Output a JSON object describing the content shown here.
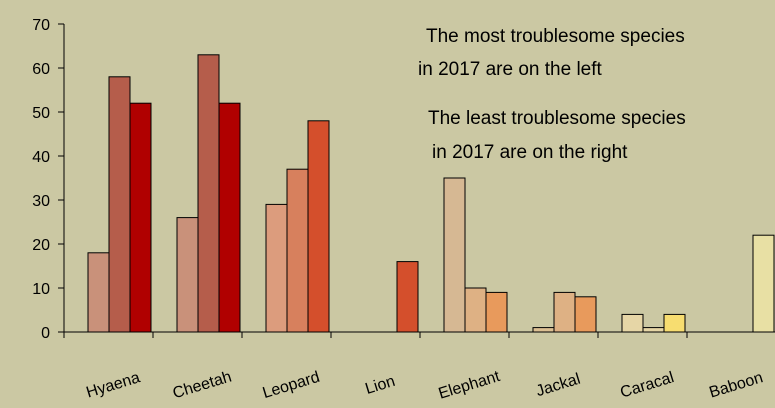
{
  "chart_data": {
    "type": "bar",
    "title": "",
    "xlabel": "",
    "ylabel": "",
    "ylim": [
      0,
      70
    ],
    "yticks": [
      0,
      10,
      20,
      30,
      40,
      50,
      60,
      70
    ],
    "grid": false,
    "legend": "none",
    "background": "#cbc8a3",
    "annotations": [
      {
        "lines": [
          "The most troublesome species",
          "in 2017 are on the left"
        ]
      },
      {
        "lines": [
          "The least troublesome species",
          "in 2017 are on the right"
        ]
      }
    ],
    "groups": [
      {
        "category": "Hyaena",
        "bars": [
          {
            "value": 18,
            "color": "#c9917a"
          },
          {
            "value": 58,
            "color": "#b55d4b"
          },
          {
            "value": 52,
            "color": "#b00000"
          }
        ]
      },
      {
        "category": "Cheetah",
        "bars": [
          {
            "value": 26,
            "color": "#c9917a"
          },
          {
            "value": 63,
            "color": "#b55d4b"
          },
          {
            "value": 52,
            "color": "#b00000"
          }
        ]
      },
      {
        "category": "Leopard",
        "bars": [
          {
            "value": 29,
            "color": "#dc9c7d"
          },
          {
            "value": 37,
            "color": "#d7805d"
          },
          {
            "value": 48,
            "color": "#d44f2c"
          }
        ]
      },
      {
        "category": "Lion",
        "bars": [
          {
            "value": 0,
            "color": "#e8a57a"
          },
          {
            "value": 0,
            "color": "#e07848"
          },
          {
            "value": 16,
            "color": "#d44f2c"
          }
        ]
      },
      {
        "category": "Elephant",
        "bars": [
          {
            "value": 35,
            "color": "#d6b893"
          },
          {
            "value": 10,
            "color": "#deb184"
          },
          {
            "value": 9,
            "color": "#e89a5c"
          }
        ]
      },
      {
        "category": "Jackal",
        "bars": [
          {
            "value": 1,
            "color": "#dcc093"
          },
          {
            "value": 9,
            "color": "#deb184"
          },
          {
            "value": 8,
            "color": "#e89a5c"
          }
        ]
      },
      {
        "category": "Caracal",
        "bars": [
          {
            "value": 4,
            "color": "#e6d6a6"
          },
          {
            "value": 1,
            "color": "#e6d6a6"
          },
          {
            "value": 4,
            "color": "#f7dd70"
          }
        ]
      },
      {
        "category": "Baboon",
        "bars": [
          {
            "value": 0,
            "color": "#e8e0a4"
          },
          {
            "value": 0,
            "color": "#e8e0a4"
          },
          {
            "value": 22,
            "color": "#e8e0a4"
          }
        ]
      }
    ]
  }
}
